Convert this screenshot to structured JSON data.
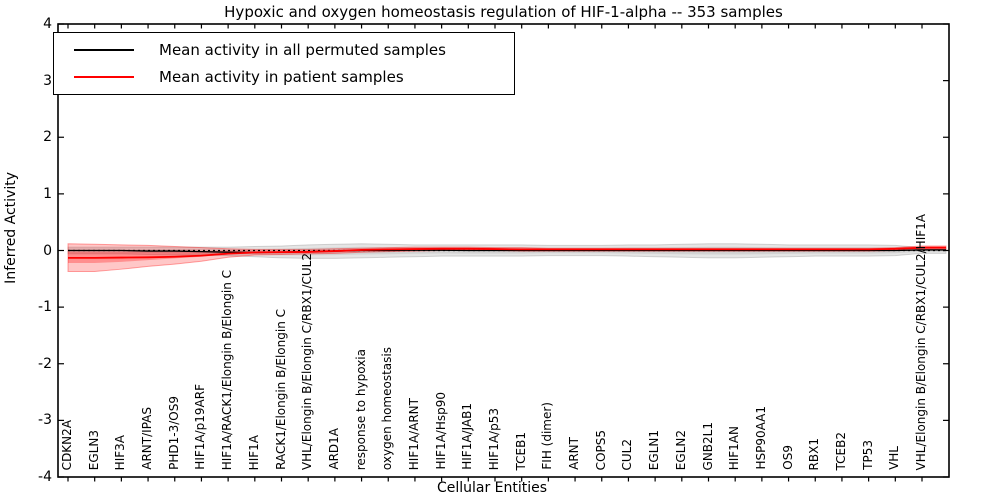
{
  "title": "Hypoxic and oxygen homeostasis regulation of HIF-1-alpha -- 353 samples",
  "legend": {
    "items": [
      {
        "label": "Mean activity in all permuted samples",
        "color": "#000000"
      },
      {
        "label": "Mean activity in patient samples",
        "color": "#ff0000"
      }
    ]
  },
  "axes": {
    "ylabel": "Inferred Activity",
    "xlabel": "Cellular Entities",
    "yticks": [
      "4",
      "3",
      "2",
      "1",
      "0",
      "-1",
      "-2",
      "-3",
      "-4"
    ]
  },
  "colors": {
    "permuted_line": "#000000",
    "patient_line": "#ff0000",
    "zero_line": "#000000",
    "patient_band": "rgba(255,0,0,0.22)",
    "patient_band_inner": "rgba(255,0,0,0.28)",
    "patient_band_edge": "rgba(255,0,0,0.35)",
    "permuted_band": "rgba(0,0,0,0.10)",
    "permuted_band_inner": "rgba(0,0,0,0.08)",
    "permuted_band_edge": "rgba(0,0,0,0.15)"
  },
  "chart_data": {
    "type": "line",
    "title": "Hypoxic and oxygen homeostasis regulation of HIF-1-alpha -- 353 samples",
    "xlabel": "Cellular Entities",
    "ylabel": "Inferred Activity",
    "ylim": [
      -4,
      4
    ],
    "grid": false,
    "legend_position": "upper left",
    "zero_reference_line": true,
    "categories": [
      "CDKN2A",
      "EGLN3",
      "HIF3A",
      "ARNT/IPAS",
      "PHD1-3/OS9",
      "HIF1A/p19ARF",
      "HIF1A/RACK1/Elongin B/Elongin C",
      "HIF1A",
      "RACK1/Elongin B/Elongin C",
      "VHL/Elongin B/Elongin C/RBX1/CUL2",
      "ARD1A",
      "response to hypoxia",
      "oxygen homeostasis",
      "HIF1A/ARNT",
      "HIF1A/Hsp90",
      "HIF1A/JAB1",
      "HIF1A/p53",
      "TCEB1",
      "FIH (dimer)",
      "ARNT",
      "COPS5",
      "CUL2",
      "EGLN1",
      "EGLN2",
      "GNB2L1",
      "HIF1AN",
      "HSP90AA1",
      "OS9",
      "RBX1",
      "TCEB2",
      "TP53",
      "VHL",
      "VHL/Elongin B/Elongin C/RBX1/CUL2/HIF1A"
    ],
    "series": [
      {
        "name": "Mean activity in all permuted samples",
        "color": "#000000",
        "values": [
          0,
          0,
          0,
          -0.01,
          -0.01,
          -0.02,
          -0.03,
          -0.035,
          -0.03,
          -0.02,
          -0.01,
          0,
          0,
          0.005,
          0.005,
          0,
          0,
          0,
          0,
          0,
          0,
          0,
          0,
          0,
          0,
          0,
          0,
          0,
          0,
          0,
          0,
          0,
          0.01
        ],
        "band_upper": [
          0.06,
          0.06,
          0.06,
          0.06,
          0.06,
          0.06,
          0.06,
          0.07,
          0.08,
          0.1,
          0.11,
          0.12,
          0.11,
          0.1,
          0.1,
          0.1,
          0.1,
          0.1,
          0.09,
          0.09,
          0.09,
          0.1,
          0.1,
          0.11,
          0.12,
          0.12,
          0.11,
          0.1,
          0.1,
          0.1,
          0.1,
          0.09,
          0.05
        ],
        "band_lower": [
          -0.06,
          -0.06,
          -0.06,
          -0.07,
          -0.08,
          -0.08,
          -0.09,
          -0.11,
          -0.13,
          -0.14,
          -0.14,
          -0.13,
          -0.12,
          -0.11,
          -0.1,
          -0.1,
          -0.1,
          -0.1,
          -0.09,
          -0.09,
          -0.09,
          -0.1,
          -0.11,
          -0.12,
          -0.13,
          -0.13,
          -0.12,
          -0.11,
          -0.1,
          -0.1,
          -0.1,
          -0.09,
          -0.05
        ]
      },
      {
        "name": "Mean activity in patient samples",
        "color": "#ff0000",
        "values": [
          -0.13,
          -0.13,
          -0.125,
          -0.12,
          -0.11,
          -0.09,
          -0.055,
          -0.035,
          -0.03,
          -0.025,
          -0.01,
          0.01,
          0.02,
          0.025,
          0.03,
          0.03,
          0.025,
          0.02,
          0.02,
          0.02,
          0.02,
          0.02,
          0.02,
          0.02,
          0.02,
          0.02,
          0.02,
          0.02,
          0.02,
          0.02,
          0.02,
          0.03,
          0.05
        ],
        "band_upper": [
          0.12,
          0.11,
          0.1,
          0.09,
          0.07,
          0.05,
          0.03,
          0.02,
          0.02,
          0.02,
          0.03,
          0.04,
          0.05,
          0.06,
          0.06,
          0.06,
          0.05,
          0.05,
          0.04,
          0.04,
          0.04,
          0.04,
          0.04,
          0.04,
          0.04,
          0.04,
          0.04,
          0.04,
          0.04,
          0.04,
          0.04,
          0.05,
          0.08
        ],
        "band_lower": [
          -0.37,
          -0.37,
          -0.33,
          -0.28,
          -0.24,
          -0.19,
          -0.12,
          -0.08,
          -0.07,
          -0.06,
          -0.05,
          -0.03,
          -0.02,
          -0.01,
          0,
          0,
          0,
          -0.01,
          -0.01,
          -0.01,
          -0.01,
          -0.01,
          -0.01,
          -0.01,
          -0.01,
          -0.01,
          -0.01,
          -0.01,
          -0.01,
          -0.01,
          -0.01,
          0,
          0.02
        ],
        "inner_band_upper": [
          -0.02,
          -0.02,
          -0.02,
          -0.02,
          -0.02,
          -0.01,
          0,
          0,
          0,
          0,
          0.01,
          0.02,
          0.03,
          0.04,
          0.04,
          0.04,
          0.04,
          0.03,
          0.03,
          0.03,
          0.03,
          0.03,
          0.03,
          0.03,
          0.03,
          0.03,
          0.03,
          0.03,
          0.03,
          0.03,
          0.03,
          0.04,
          0.065
        ],
        "inner_band_lower": [
          -0.22,
          -0.22,
          -0.2,
          -0.17,
          -0.14,
          -0.11,
          -0.07,
          -0.05,
          -0.04,
          -0.04,
          -0.03,
          -0.01,
          0,
          0.01,
          0.01,
          0.01,
          0.01,
          0,
          0,
          0,
          0,
          0,
          0,
          0,
          0,
          0,
          0,
          0,
          0,
          0,
          0,
          0.01,
          0.035
        ]
      }
    ]
  }
}
